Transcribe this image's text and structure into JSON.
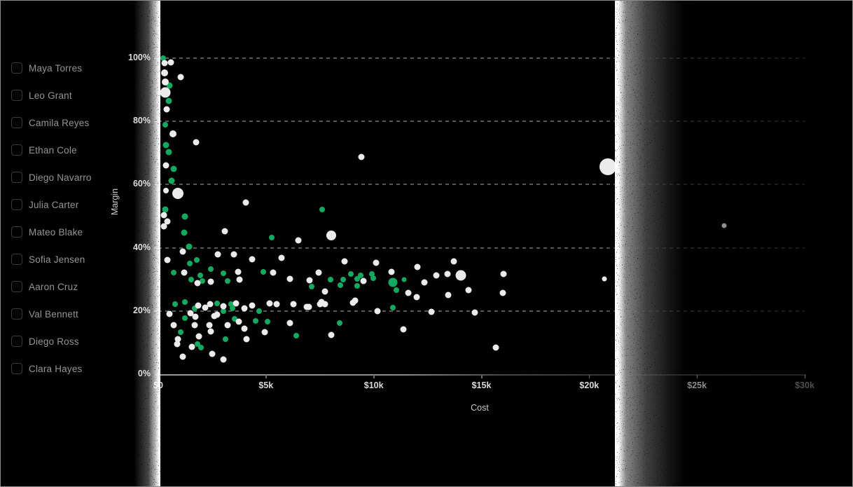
{
  "sidebar": {
    "items": [
      {
        "label": "Maya Torres",
        "checked": false
      },
      {
        "label": "Leo Grant",
        "checked": false
      },
      {
        "label": "Camila Reyes",
        "checked": false
      },
      {
        "label": "Ethan Cole",
        "checked": false
      },
      {
        "label": "Diego Navarro",
        "checked": false
      },
      {
        "label": "Julia Carter",
        "checked": false
      },
      {
        "label": "Mateo Blake",
        "checked": false
      },
      {
        "label": "Sofia Jensen",
        "checked": false
      },
      {
        "label": "Aaron Cruz",
        "checked": false
      },
      {
        "label": "Val Bennett",
        "checked": false
      },
      {
        "label": "Diego Ross",
        "checked": false
      },
      {
        "label": "Clara Hayes",
        "checked": false
      }
    ]
  },
  "chart_data": {
    "type": "scatter",
    "title": "",
    "xlabel": "Cost",
    "ylabel": "Margin",
    "xlim": [
      0,
      30000
    ],
    "ylim": [
      0,
      100
    ],
    "grid": "dashed horizontal lines at 20/40/60/80/100, fading toward right",
    "legend": "none",
    "x_ticks": [
      {
        "value": 0,
        "label": "$0"
      },
      {
        "value": 5000,
        "label": "$5k"
      },
      {
        "value": 10000,
        "label": "$10k"
      },
      {
        "value": 15000,
        "label": "$15k"
      },
      {
        "value": 20000,
        "label": "$20k"
      },
      {
        "value": 25000,
        "label": "$25k"
      },
      {
        "value": 30000,
        "label": "$30k"
      }
    ],
    "y_ticks": [
      {
        "value": 0,
        "label": "0%"
      },
      {
        "value": 20,
        "label": "20%"
      },
      {
        "value": 40,
        "label": "40%"
      },
      {
        "value": 60,
        "label": "60%"
      },
      {
        "value": 80,
        "label": "80%"
      },
      {
        "value": 100,
        "label": "100%"
      }
    ],
    "point_format": "[cost_dollars, margin_percent, radius_px]",
    "series": [
      {
        "name": "green",
        "color": "#15a85f",
        "points": [
          [
            229,
            100,
            4
          ],
          [
            523,
            91.3,
            4.5
          ],
          [
            490,
            86.4,
            4.5
          ],
          [
            327,
            78.9,
            4
          ],
          [
            359,
            72.4,
            4.5
          ],
          [
            490,
            70.2,
            4.5
          ],
          [
            719,
            64.9,
            4.5
          ],
          [
            621,
            61.3,
            4.5
          ],
          [
            7614,
            52,
            4
          ],
          [
            327,
            52,
            4.5
          ],
          [
            1242,
            50,
            4.5
          ],
          [
            1209,
            44.7,
            4.5
          ],
          [
            5261,
            43.3,
            4
          ],
          [
            1438,
            40.4,
            4.5
          ],
          [
            1797,
            36.2,
            4
          ],
          [
            1471,
            35.1,
            4
          ],
          [
            4869,
            32.4,
            4
          ],
          [
            719,
            32.2,
            4
          ],
          [
            3007,
            32,
            4
          ],
          [
            1961,
            31.3,
            4
          ],
          [
            2451,
            33.3,
            4
          ],
          [
            1536,
            30,
            4
          ],
          [
            2059,
            29.6,
            4
          ],
          [
            3203,
            29.6,
            4
          ],
          [
            8922,
            31.8,
            4
          ],
          [
            9379,
            31.3,
            4
          ],
          [
            9902,
            31.8,
            4
          ],
          [
            9967,
            30.4,
            4
          ],
          [
            8007,
            30,
            4
          ],
          [
            8595,
            30,
            4
          ],
          [
            9216,
            30.2,
            4
          ],
          [
            10882,
            29.1,
            6.5
          ],
          [
            11405,
            30,
            3.5
          ],
          [
            11046,
            26.7,
            4
          ],
          [
            8464,
            28.2,
            4
          ],
          [
            9216,
            28,
            4
          ],
          [
            7124,
            27.8,
            4
          ],
          [
            784,
            22.2,
            4
          ],
          [
            1242,
            22.9,
            4
          ],
          [
            2745,
            22.4,
            4
          ],
          [
            3366,
            22.2,
            4
          ],
          [
            3431,
            20.9,
            4
          ],
          [
            4673,
            20,
            4
          ],
          [
            10882,
            21.1,
            4
          ],
          [
            1699,
            20.9,
            4
          ],
          [
            1242,
            17.8,
            4
          ],
          [
            3039,
            20,
            4
          ],
          [
            3529,
            17.6,
            4
          ],
          [
            4510,
            16.9,
            4
          ],
          [
            5065,
            16.7,
            4
          ],
          [
            8431,
            16.2,
            4
          ],
          [
            1046,
            13.3,
            4
          ],
          [
            6405,
            12.2,
            4
          ],
          [
            3105,
            11.1,
            4
          ],
          [
            1830,
            9.6,
            4
          ],
          [
            1993,
            8.4,
            4
          ]
        ]
      },
      {
        "name": "white",
        "color": "#ebebeb",
        "points": [
          [
            294,
            98.4,
            4.5
          ],
          [
            588,
            98.7,
            4.5
          ],
          [
            294,
            95.3,
            5
          ],
          [
            1046,
            94,
            4.5
          ],
          [
            327,
            92.4,
            5
          ],
          [
            327,
            89.1,
            7.5
          ],
          [
            392,
            83.8,
            4.5
          ],
          [
            686,
            76,
            5
          ],
          [
            1765,
            73.3,
            4.5
          ],
          [
            9412,
            68.7,
            4.5
          ],
          [
            20882,
            65.6,
            12
          ],
          [
            359,
            66,
            4.5
          ],
          [
            359,
            58.2,
            4
          ],
          [
            915,
            57.1,
            8
          ],
          [
            4052,
            54.4,
            4.5
          ],
          [
            261,
            50.4,
            4.5
          ],
          [
            425,
            48.4,
            4.5
          ],
          [
            261,
            46.7,
            4.5
          ],
          [
            3072,
            45.3,
            4.5
          ],
          [
            6503,
            42.4,
            4.5
          ],
          [
            8039,
            43.8,
            7
          ],
          [
            1144,
            38.9,
            4.5
          ],
          [
            2778,
            38,
            4.5
          ],
          [
            3497,
            38,
            4.5
          ],
          [
            425,
            36.2,
            4.5
          ],
          [
            4346,
            36.4,
            4.5
          ],
          [
            5719,
            36.7,
            4.5
          ],
          [
            8660,
            35.6,
            4.5
          ],
          [
            10098,
            35.3,
            4.5
          ],
          [
            13725,
            35.8,
            4.5
          ],
          [
            5327,
            32.2,
            4.5
          ],
          [
            1209,
            32.2,
            4.5
          ],
          [
            3693,
            32.4,
            4.5
          ],
          [
            1830,
            28.9,
            4.5
          ],
          [
            2451,
            29.3,
            4.5
          ],
          [
            3758,
            30,
            4.5
          ],
          [
            6111,
            30.2,
            4.5
          ],
          [
            10817,
            32.4,
            4.5
          ],
          [
            7451,
            32.2,
            4.5
          ],
          [
            12026,
            34,
            4.5
          ],
          [
            12908,
            31.3,
            4.5
          ],
          [
            13431,
            31.8,
            4.5
          ],
          [
            14052,
            31.3,
            7.5
          ],
          [
            16013,
            31.8,
            4.5
          ],
          [
            20719,
            30.2,
            3.5
          ],
          [
            9510,
            29.6,
            4.5
          ],
          [
            12353,
            29.1,
            4.5
          ],
          [
            7026,
            29.8,
            4.5
          ],
          [
            7745,
            26.2,
            4.5
          ],
          [
            11601,
            25.8,
            4.5
          ],
          [
            11993,
            24.4,
            4.5
          ],
          [
            13464,
            25.1,
            4.5
          ],
          [
            14412,
            26.7,
            4.5
          ],
          [
            15980,
            25.8,
            4.5
          ],
          [
            7582,
            22.9,
            4.5
          ],
          [
            9118,
            23.3,
            4.5
          ],
          [
            6993,
            21.3,
            4.5
          ],
          [
            1863,
            21.8,
            4.5
          ],
          [
            2190,
            21.1,
            4.5
          ],
          [
            2418,
            22.2,
            4.5
          ],
          [
            3007,
            21.6,
            4.5
          ],
          [
            3595,
            22.4,
            4.5
          ],
          [
            3987,
            20.9,
            4.5
          ],
          [
            4346,
            21.8,
            4.5
          ],
          [
            5163,
            22.4,
            4.5
          ],
          [
            5490,
            22.2,
            4.5
          ],
          [
            6275,
            22.2,
            4.5
          ],
          [
            6895,
            21.3,
            4.5
          ],
          [
            7516,
            22.2,
            4.5
          ],
          [
            7745,
            22.2,
            4.5
          ],
          [
            9052,
            22.7,
            4.5
          ],
          [
            10163,
            20,
            4.5
          ],
          [
            12680,
            19.8,
            4.5
          ],
          [
            14706,
            19.6,
            4.5
          ],
          [
            523,
            19.1,
            4.5
          ],
          [
            1503,
            19.3,
            4.5
          ],
          [
            1732,
            18.2,
            4.5
          ],
          [
            2614,
            18.4,
            4.5
          ],
          [
            2745,
            18.9,
            4.5
          ],
          [
            3725,
            16.7,
            4.5
          ],
          [
            6111,
            16.2,
            4.5
          ],
          [
            11373,
            14.2,
            4.5
          ],
          [
            719,
            15.6,
            4.5
          ],
          [
            1699,
            15.6,
            4.5
          ],
          [
            2386,
            15.6,
            4.5
          ],
          [
            2451,
            13.6,
            4.5
          ],
          [
            3203,
            15.6,
            4.5
          ],
          [
            3987,
            14.4,
            4.5
          ],
          [
            4935,
            13.3,
            4.5
          ],
          [
            8039,
            12.4,
            4.5
          ],
          [
            915,
            11.1,
            4.5
          ],
          [
            1895,
            12,
            4.5
          ],
          [
            4085,
            11.1,
            4.5
          ],
          [
            882,
            9.6,
            4.5
          ],
          [
            1569,
            8.7,
            4.5
          ],
          [
            1144,
            5.6,
            4.5
          ],
          [
            2516,
            6.4,
            4.5
          ],
          [
            3039,
            4.7,
            4.5
          ],
          [
            15654,
            8.4,
            4.5
          ]
        ]
      },
      {
        "name": "muted-gray",
        "color": "#8f8f8f",
        "points": [
          [
            26270,
            47.1,
            3.5
          ]
        ]
      }
    ]
  }
}
